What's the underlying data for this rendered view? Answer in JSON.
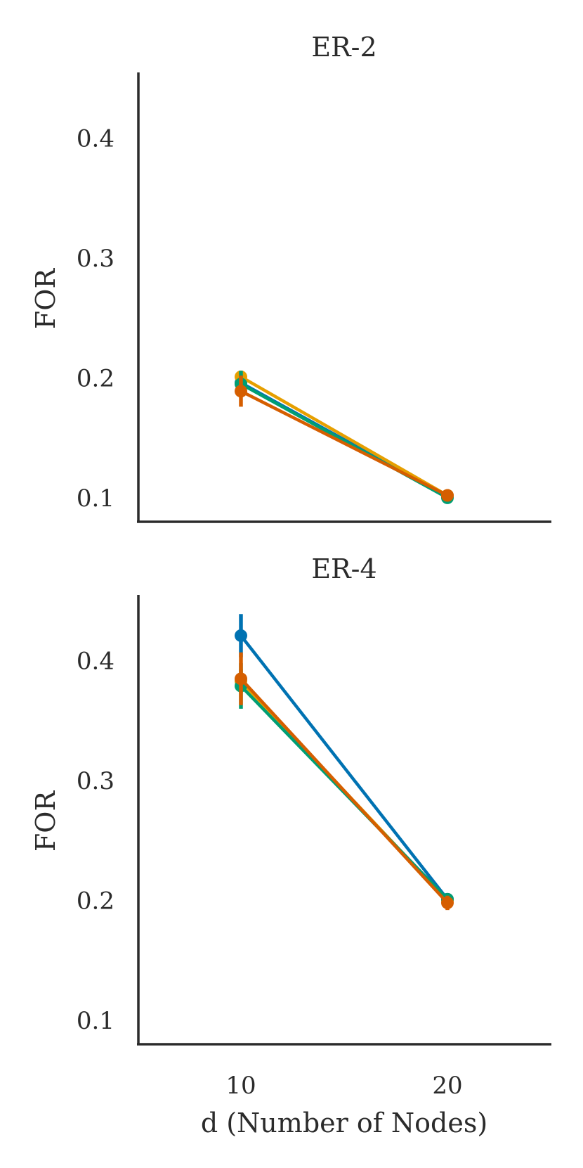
{
  "chart_data": [
    {
      "type": "line",
      "title": "ER-2",
      "xlabel": "",
      "ylabel": "FOR",
      "categories": [
        "10",
        "20"
      ],
      "ylim": [
        0.08,
        0.455
      ],
      "yticks": [
        "0.1",
        "0.2",
        "0.3",
        "0.4"
      ],
      "grid": false,
      "series": [
        {
          "color": "#0072B2",
          "values": [
            0.196,
            0.101
          ],
          "error": [
            0.005,
            0.003
          ]
        },
        {
          "color": "#E69F00",
          "values": [
            0.201,
            0.102
          ],
          "error": [
            0.004,
            0.003
          ]
        },
        {
          "color": "#009E73",
          "values": [
            0.195,
            0.1
          ],
          "error": [
            0.011,
            0.003
          ]
        },
        {
          "color": "#D55E00",
          "values": [
            0.189,
            0.102
          ],
          "error": [
            0.013,
            0.003
          ]
        }
      ]
    },
    {
      "type": "line",
      "title": "ER-4",
      "xlabel": "d (Number of Nodes)",
      "ylabel": "FOR",
      "categories": [
        "10",
        "20"
      ],
      "ylim": [
        0.08,
        0.455
      ],
      "yticks": [
        "0.1",
        "0.2",
        "0.3",
        "0.4"
      ],
      "grid": false,
      "series": [
        {
          "color": "#0072B2",
          "values": [
            0.421,
            0.201
          ],
          "error": [
            0.018,
            0.004
          ]
        },
        {
          "color": "#E69F00",
          "values": [
            0.383,
            0.2
          ],
          "error": [
            0.01,
            0.004
          ]
        },
        {
          "color": "#009E73",
          "values": [
            0.379,
            0.201
          ],
          "error": [
            0.019,
            0.004
          ]
        },
        {
          "color": "#D55E00",
          "values": [
            0.385,
            0.198
          ],
          "error": [
            0.022,
            0.006
          ]
        }
      ]
    }
  ]
}
